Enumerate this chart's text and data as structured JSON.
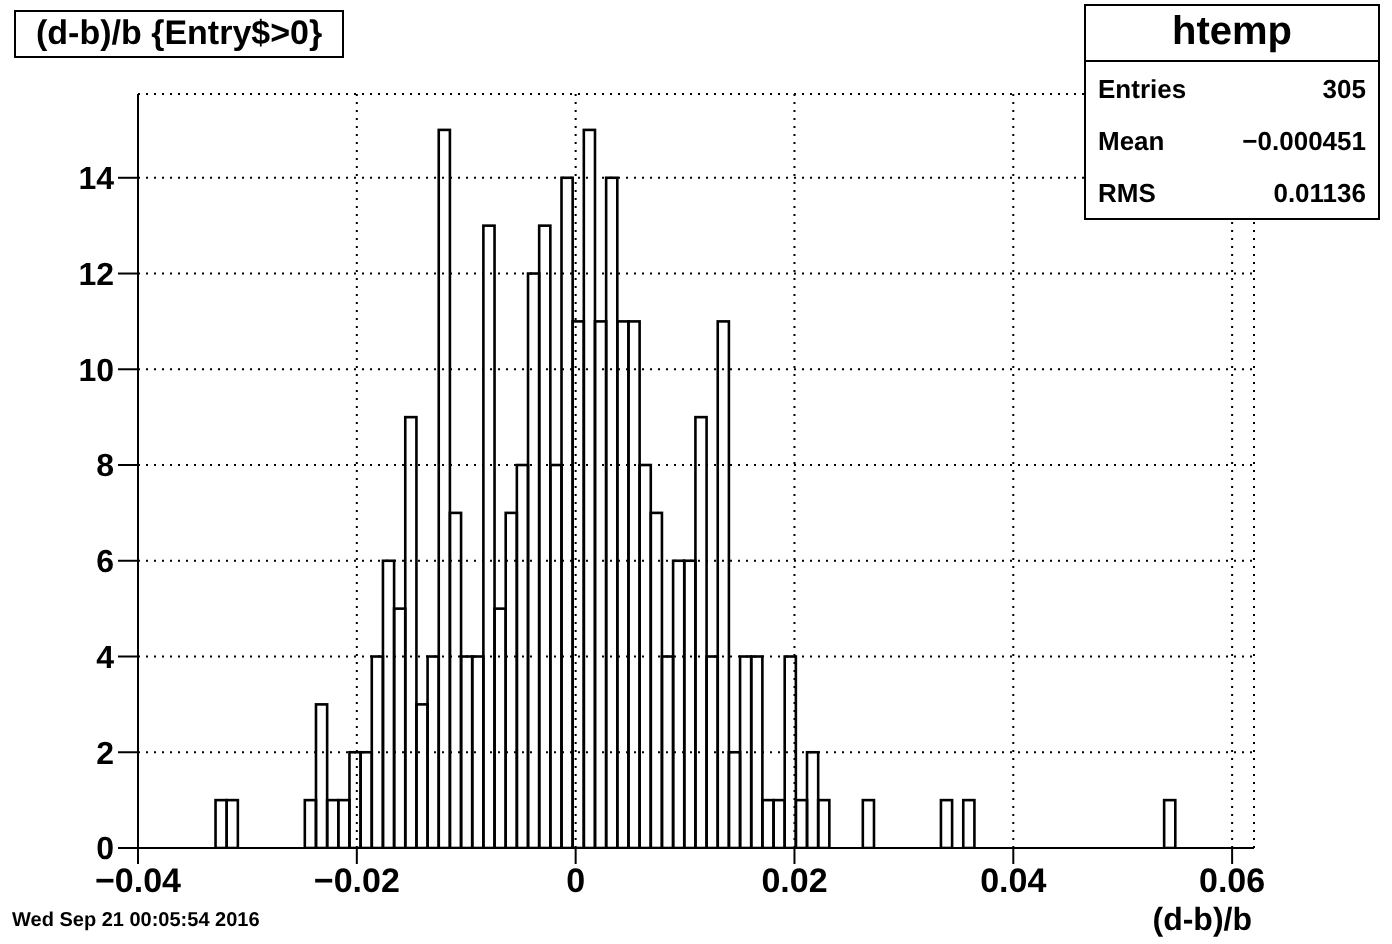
{
  "chart_data": {
    "type": "histogram",
    "title": "(d-b)/b {Entry$>0}",
    "xlabel": "(d-b)/b",
    "bins": [
      -0.04,
      -0.03898,
      -0.03796,
      -0.03694,
      -0.03592,
      -0.0349,
      -0.03388,
      -0.03286,
      -0.03184,
      -0.03082,
      -0.0298,
      -0.02878,
      -0.02776,
      -0.02674,
      -0.02572,
      -0.0247,
      -0.02368,
      -0.02266,
      -0.02164,
      -0.02062,
      -0.0196,
      -0.01858,
      -0.01756,
      -0.01654,
      -0.01552,
      -0.0145,
      -0.01348,
      -0.01246,
      -0.01144,
      -0.01042,
      -0.0094,
      -0.00838,
      -0.00736,
      -0.00634,
      -0.00532,
      -0.0043,
      -0.00328,
      -0.00226,
      -0.00124,
      -0.00022,
      0.0008,
      0.00182,
      0.00284,
      0.00386,
      0.00488,
      0.0059,
      0.00692,
      0.00794,
      0.00896,
      0.00998,
      0.011,
      0.01202,
      0.01304,
      0.01406,
      0.01508,
      0.0161,
      0.01712,
      0.01814,
      0.01916,
      0.02018,
      0.0212,
      0.02222,
      0.02324,
      0.02426,
      0.02528,
      0.0263,
      0.02732,
      0.02834,
      0.02936,
      0.03038,
      0.0314,
      0.03242,
      0.03344,
      0.03446,
      0.03548,
      0.0365,
      0.03752,
      0.03854,
      0.03956,
      0.04058,
      0.0416,
      0.04262,
      0.04364,
      0.04466,
      0.04568,
      0.0467,
      0.04772,
      0.04874,
      0.04976,
      0.05078,
      0.0518,
      0.05282,
      0.05384,
      0.05486,
      0.05588,
      0.0569,
      0.05792,
      0.05894,
      0.05996,
      0.06098,
      0.062
    ],
    "values": [
      0,
      0,
      0,
      0,
      0,
      0,
      0,
      1,
      1,
      0,
      0,
      0,
      0,
      0,
      0,
      1,
      3,
      1,
      1,
      2,
      2,
      4,
      6,
      5,
      9,
      3,
      4,
      15,
      7,
      4,
      4,
      13,
      5,
      7,
      8,
      12,
      13,
      8,
      14,
      11,
      15,
      11,
      14,
      11,
      11,
      8,
      7,
      4,
      6,
      6,
      9,
      4,
      11,
      2,
      4,
      4,
      1,
      1,
      4,
      1,
      2,
      1,
      0,
      0,
      0,
      1,
      0,
      0,
      0,
      0,
      0,
      0,
      1,
      0,
      1,
      0,
      0,
      0,
      0,
      0,
      0,
      0,
      0,
      0,
      0,
      0,
      0,
      0,
      0,
      0,
      0,
      0,
      1,
      0,
      0,
      0,
      0,
      0,
      0,
      0
    ],
    "color": "#000000",
    "xlim": [
      -0.04,
      0.062
    ],
    "xticks": [
      {
        "value": -0.04,
        "label": "−0.04"
      },
      {
        "value": -0.02,
        "label": "−0.02"
      },
      0,
      0.02,
      0.04,
      0.06
    ],
    "ylim": [
      0,
      15.75
    ],
    "yticks": [
      0,
      2,
      4,
      6,
      8,
      10,
      12,
      14
    ],
    "grid": true,
    "annotations": [
      "htemp",
      "Entries",
      "305",
      "Mean",
      "−0.000451",
      "RMS",
      "0.01136",
      "Wed Sep 21 00:05:54 2016"
    ]
  }
}
